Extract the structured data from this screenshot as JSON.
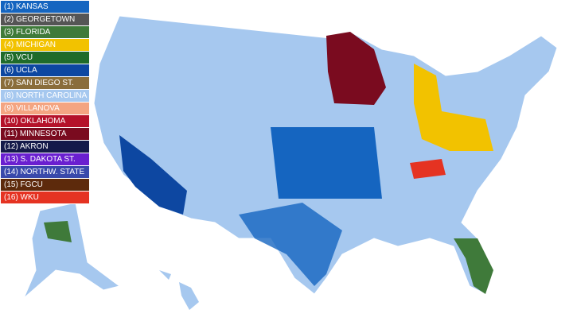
{
  "legend": [
    {
      "label": "(1) KANSAS",
      "color": "#1565c0"
    },
    {
      "label": "(2) GEORGETOWN",
      "color": "#555555"
    },
    {
      "label": "(3) FLORIDA",
      "color": "#3f7a3a"
    },
    {
      "label": "(4) MICHIGAN",
      "color": "#f2c200"
    },
    {
      "label": "(5) VCU",
      "color": "#1f6b2a"
    },
    {
      "label": "(6) UCLA",
      "color": "#0d47a1"
    },
    {
      "label": "(7) SAN DIEGO ST.",
      "color": "#8a6d3b"
    },
    {
      "label": "(8) NORTH CAROLINA",
      "color": "#a6c8ef"
    },
    {
      "label": "(9) VILLANOVA",
      "color": "#f4a582"
    },
    {
      "label": "(10) OKLAHOMA",
      "color": "#b5122a"
    },
    {
      "label": "(11) MINNESOTA",
      "color": "#7a0b1f"
    },
    {
      "label": "(12) AKRON",
      "color": "#141a4a"
    },
    {
      "label": "(13) S. DAKOTA ST.",
      "color": "#6a1fd0"
    },
    {
      "label": "(14) NORTHW. STATE",
      "color": "#3949ab"
    },
    {
      "label": "(15) FGCU",
      "color": "#5d2a0c"
    },
    {
      "label": "(16) WKU",
      "color": "#e53322"
    }
  ]
}
